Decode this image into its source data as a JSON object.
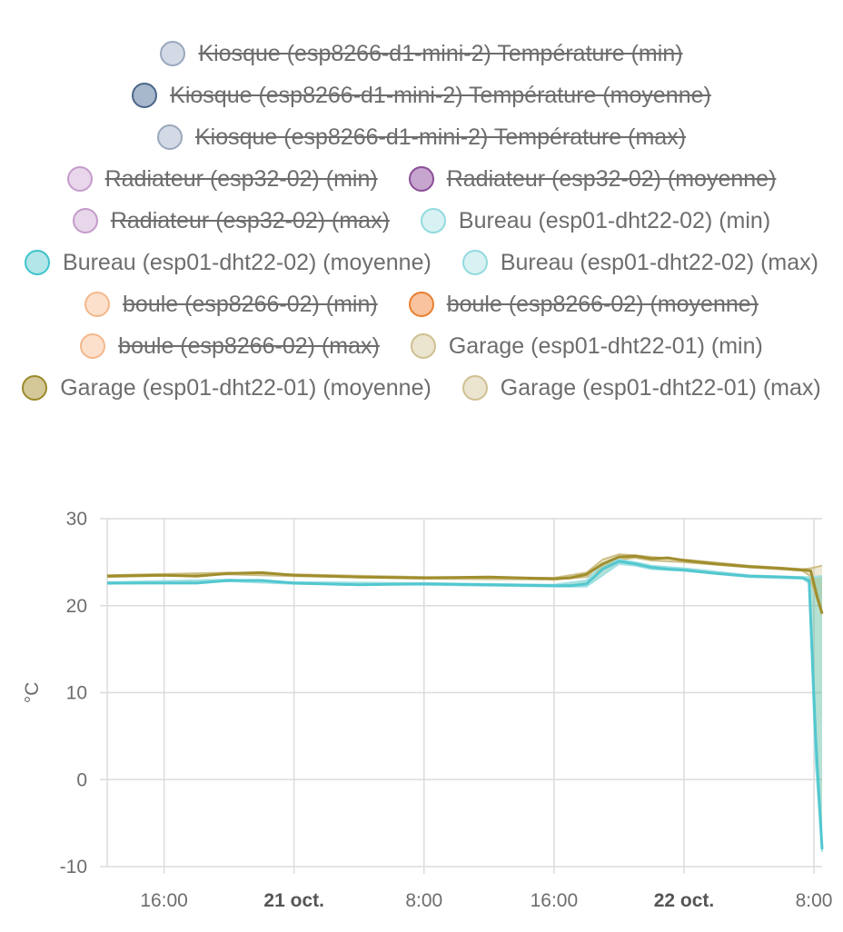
{
  "chart_data": {
    "type": "line",
    "ylabel": "°C",
    "ylim": [
      -10,
      30
    ],
    "yticks": [
      30,
      20,
      10,
      0,
      -10
    ],
    "x_ticks": [
      {
        "label": "16:00",
        "t": 16,
        "bold": false
      },
      {
        "label": "21 oct.",
        "t": 24,
        "bold": true
      },
      {
        "label": "8:00",
        "t": 32,
        "bold": false
      },
      {
        "label": "16:00",
        "t": 40,
        "bold": false
      },
      {
        "label": "22 oct.",
        "t": 48,
        "bold": true
      },
      {
        "label": "8:00",
        "t": 56,
        "bold": false
      }
    ],
    "x_range": [
      12.5,
      56.5
    ],
    "grid": true,
    "legend_position": "top",
    "legend": [
      {
        "name": "Kiosque (esp8266-d1-mini-2) Température (min)",
        "color": "#d3dae6",
        "border": "#9aa8bd",
        "hidden": true
      },
      {
        "name": "Kiosque (esp8266-d1-mini-2) Température (moyenne)",
        "color": "#a7b7cc",
        "border": "#4a6789",
        "hidden": true
      },
      {
        "name": "Kiosque (esp8266-d1-mini-2) Température (max)",
        "color": "#d3dae6",
        "border": "#9aa8bd",
        "hidden": true
      },
      {
        "name": "Radiateur (esp32-02) (min)",
        "color": "#e8d6ea",
        "border": "#c49ccb",
        "hidden": true
      },
      {
        "name": "Radiateur (esp32-02) (moyenne)",
        "color": "#c6a5cf",
        "border": "#8a4e96",
        "hidden": true
      },
      {
        "name": "Radiateur (esp32-02) (max)",
        "color": "#e8d6ea",
        "border": "#c49ccb",
        "hidden": true
      },
      {
        "name": "Bureau (esp01-dht22-02) (min)",
        "color": "#d8f2f3",
        "border": "#92dade",
        "hidden": false
      },
      {
        "name": "Bureau (esp01-dht22-02) (moyenne)",
        "color": "#b2e6e8",
        "border": "#3fc4cc",
        "hidden": false
      },
      {
        "name": "Bureau (esp01-dht22-02) (max)",
        "color": "#d8f2f3",
        "border": "#92dade",
        "hidden": false
      },
      {
        "name": "boule (esp8266-02) (min)",
        "color": "#fce0cc",
        "border": "#f4b88c",
        "hidden": true
      },
      {
        "name": "boule (esp8266-02) (moyenne)",
        "color": "#f8c39e",
        "border": "#ea7f2e",
        "hidden": true
      },
      {
        "name": "boule (esp8266-02) (max)",
        "color": "#fce0cc",
        "border": "#f4b88c",
        "hidden": true
      },
      {
        "name": "Garage (esp01-dht22-01) (min)",
        "color": "#ebe4cf",
        "border": "#cfc092",
        "hidden": false
      },
      {
        "name": "Garage (esp01-dht22-01) (moyenne)",
        "color": "#d4c898",
        "border": "#9a8a2c",
        "hidden": false
      },
      {
        "name": "Garage (esp01-dht22-01) (max)",
        "color": "#ebe4cf",
        "border": "#cfc092",
        "hidden": false
      }
    ],
    "series": [
      {
        "name": "Garage (esp01-dht22-01) (moyenne)",
        "color": "#a08e2e",
        "x": [
          12.5,
          16,
          18,
          20,
          22,
          24,
          28,
          32,
          36,
          40,
          41,
          42,
          43,
          44,
          45,
          46,
          47,
          48,
          50,
          52,
          54,
          55.3,
          55.8,
          56.2,
          56.5
        ],
        "y": [
          23.4,
          23.5,
          23.4,
          23.7,
          23.8,
          23.5,
          23.3,
          23.2,
          23.3,
          23.1,
          23.2,
          23.6,
          24.8,
          25.6,
          25.7,
          25.4,
          25.5,
          25.2,
          24.8,
          24.5,
          24.3,
          24.1,
          24.0,
          21.0,
          19.1
        ]
      },
      {
        "name": "Garage (esp01-dht22-01) (max)",
        "color": "#cdbe85",
        "x": [
          12.5,
          20,
          24,
          32,
          40,
          42,
          43,
          44,
          45,
          46,
          48,
          52,
          55.3,
          55.8,
          56.5
        ],
        "y": [
          23.5,
          23.8,
          23.6,
          23.3,
          23.2,
          23.8,
          25.3,
          25.9,
          25.8,
          25.6,
          25.3,
          24.6,
          24.2,
          24.3,
          24.6
        ]
      },
      {
        "name": "Garage (esp01-dht22-01) (min)",
        "color": "#cdbe85",
        "x": [
          12.5,
          20,
          24,
          32,
          40,
          42,
          43,
          44,
          45,
          46,
          48,
          52,
          55.3,
          55.7,
          56.5
        ],
        "y": [
          23.3,
          23.6,
          23.4,
          23.1,
          23.0,
          23.3,
          24.3,
          25.3,
          25.5,
          25.2,
          25.0,
          24.4,
          24.0,
          23.5,
          19.0
        ]
      },
      {
        "name": "Bureau (esp01-dht22-02) (moyenne)",
        "color": "#52c7cf",
        "x": [
          12.5,
          16,
          18,
          20,
          22,
          24,
          28,
          32,
          36,
          40,
          41,
          42,
          43,
          44,
          45,
          46,
          47,
          48,
          50,
          52,
          54,
          55.3,
          55.7,
          56.1,
          56.5
        ],
        "y": [
          22.6,
          22.6,
          22.6,
          22.9,
          22.9,
          22.6,
          22.4,
          22.5,
          22.4,
          22.3,
          22.3,
          22.5,
          24.2,
          25.1,
          24.8,
          24.4,
          24.2,
          24.1,
          23.7,
          23.4,
          23.3,
          23.2,
          22.9,
          5.0,
          -8.0
        ]
      },
      {
        "name": "Bureau (esp01-dht22-02) (max)",
        "color": "#9fe0e4",
        "x": [
          12.5,
          20,
          24,
          32,
          40,
          42,
          43,
          44,
          45,
          46,
          48,
          52,
          55.3,
          55.7,
          56.5
        ],
        "y": [
          22.7,
          23.0,
          22.7,
          22.6,
          22.4,
          22.9,
          24.8,
          25.3,
          25.0,
          24.6,
          24.3,
          23.5,
          23.3,
          23.3,
          23.4
        ]
      },
      {
        "name": "Bureau (esp01-dht22-02) (min)",
        "color": "#9fe0e4",
        "x": [
          12.5,
          20,
          24,
          32,
          40,
          42,
          43,
          44,
          45,
          46,
          48,
          52,
          55.3,
          55.7,
          56.1,
          56.5
        ],
        "y": [
          22.5,
          22.8,
          22.5,
          22.4,
          22.2,
          22.2,
          23.5,
          24.8,
          24.6,
          24.2,
          24.0,
          23.3,
          23.1,
          22.6,
          2.0,
          -8.3
        ]
      }
    ],
    "bands": [
      {
        "name": "Garage (esp01-dht22-01)",
        "color": "rgba(205,190,133,0.35)",
        "min_series": "Garage (esp01-dht22-01) (min)",
        "max_series": "Garage (esp01-dht22-01) (max)"
      },
      {
        "name": "Bureau (esp01-dht22-02)",
        "color": "rgba(60,175,140,0.38)",
        "min_series": "Bureau (esp01-dht22-02) (min)",
        "max_series": "Bureau (esp01-dht22-02) (max)"
      }
    ]
  }
}
